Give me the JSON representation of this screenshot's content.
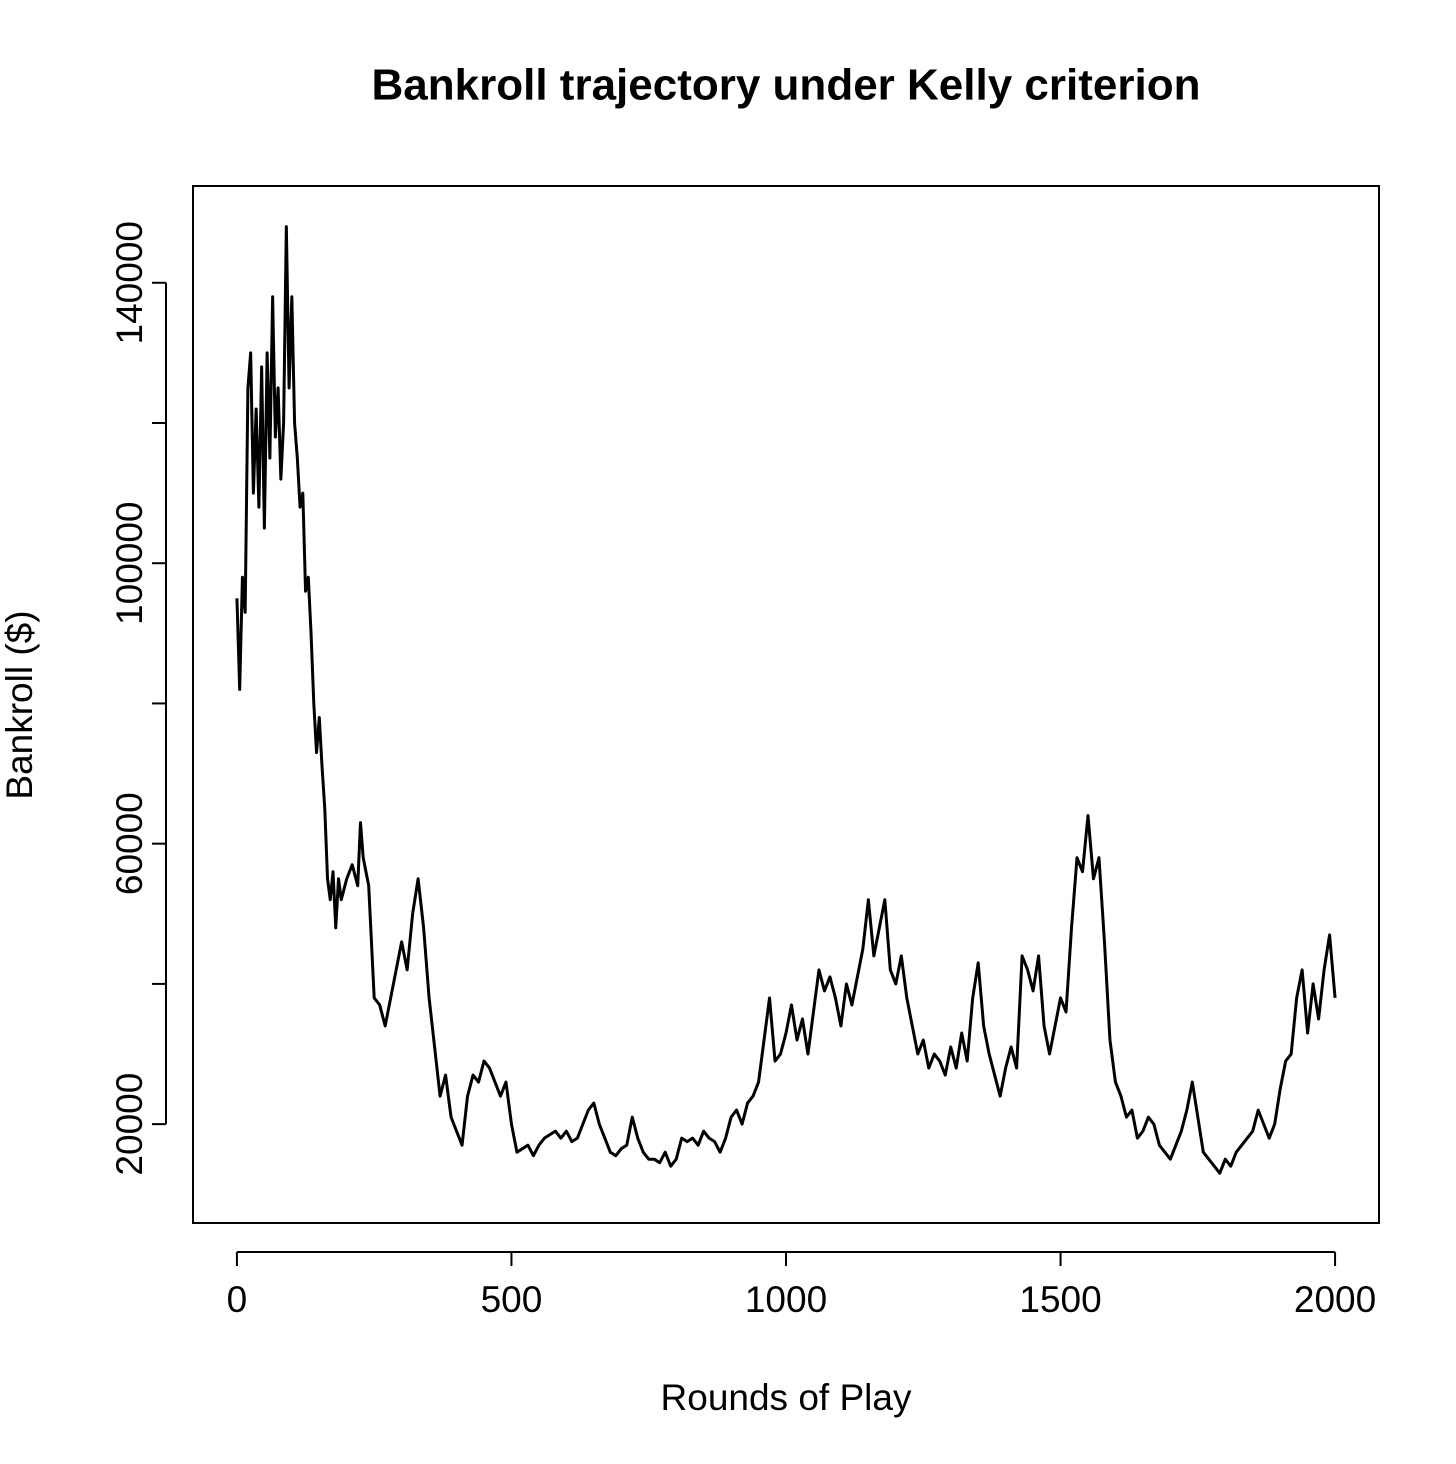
{
  "chart_data": {
    "type": "line",
    "title": "Bankroll trajectory under Kelly criterion",
    "x_label": "Rounds of Play",
    "y_label": "Bankroll ($)",
    "color": "#000000",
    "xlim": [
      -80,
      2080
    ],
    "ylim": [
      5900,
      153800
    ],
    "xticks": [
      0,
      500,
      1000,
      1500,
      2000
    ],
    "yticks": [
      20000,
      {
        "value": 40000,
        "label": null
      },
      60000,
      {
        "value": 80000,
        "label": null
      },
      100000,
      {
        "value": 120000,
        "label": null
      },
      140000
    ],
    "x": [
      0,
      5,
      10,
      15,
      20,
      25,
      30,
      35,
      40,
      45,
      50,
      55,
      60,
      65,
      70,
      75,
      80,
      85,
      90,
      95,
      100,
      105,
      110,
      115,
      120,
      125,
      130,
      135,
      140,
      145,
      150,
      155,
      160,
      165,
      170,
      175,
      180,
      185,
      190,
      200,
      210,
      220,
      225,
      230,
      240,
      250,
      260,
      270,
      280,
      290,
      300,
      310,
      320,
      330,
      340,
      350,
      360,
      370,
      380,
      390,
      400,
      410,
      420,
      430,
      440,
      450,
      460,
      470,
      480,
      490,
      500,
      510,
      520,
      530,
      540,
      550,
      560,
      570,
      580,
      590,
      600,
      610,
      620,
      630,
      640,
      650,
      660,
      670,
      680,
      690,
      700,
      710,
      720,
      730,
      740,
      750,
      760,
      770,
      780,
      790,
      800,
      810,
      820,
      830,
      840,
      850,
      860,
      870,
      880,
      890,
      900,
      910,
      920,
      930,
      940,
      950,
      960,
      970,
      980,
      990,
      1000,
      1010,
      1020,
      1030,
      1040,
      1050,
      1060,
      1070,
      1080,
      1090,
      1100,
      1110,
      1120,
      1130,
      1140,
      1150,
      1160,
      1170,
      1180,
      1190,
      1200,
      1210,
      1220,
      1230,
      1240,
      1250,
      1260,
      1270,
      1280,
      1290,
      1300,
      1310,
      1320,
      1330,
      1340,
      1350,
      1360,
      1370,
      1380,
      1390,
      1400,
      1410,
      1420,
      1430,
      1440,
      1450,
      1460,
      1470,
      1480,
      1490,
      1500,
      1510,
      1520,
      1530,
      1540,
      1550,
      1560,
      1570,
      1580,
      1590,
      1600,
      1610,
      1620,
      1630,
      1640,
      1650,
      1660,
      1670,
      1680,
      1690,
      1700,
      1710,
      1720,
      1730,
      1740,
      1750,
      1760,
      1770,
      1780,
      1790,
      1800,
      1810,
      1820,
      1830,
      1840,
      1850,
      1860,
      1870,
      1880,
      1890,
      1900,
      1910,
      1920,
      1930,
      1940,
      1950,
      1960,
      1970,
      1980,
      1990,
      2000
    ],
    "values": [
      95000,
      82000,
      98000,
      93000,
      125000,
      130000,
      110000,
      122000,
      108000,
      128000,
      105000,
      130000,
      115000,
      138000,
      118000,
      125000,
      112000,
      120000,
      148000,
      125000,
      138000,
      120000,
      115000,
      108000,
      110000,
      96000,
      98000,
      90000,
      80000,
      73000,
      78000,
      71000,
      65000,
      55000,
      52000,
      56000,
      48000,
      55000,
      52000,
      55000,
      57000,
      54000,
      63000,
      58000,
      54000,
      38000,
      37000,
      34000,
      38000,
      42000,
      46000,
      42000,
      50000,
      55000,
      48000,
      38000,
      31000,
      24000,
      27000,
      21000,
      19000,
      17000,
      24000,
      27000,
      26000,
      29000,
      28000,
      26000,
      24000,
      26000,
      20000,
      16000,
      16500,
      17000,
      15500,
      17000,
      18000,
      18500,
      19000,
      18000,
      19000,
      17500,
      18000,
      20000,
      22000,
      23000,
      20000,
      18000,
      16000,
      15500,
      16500,
      17000,
      21000,
      18000,
      16000,
      15000,
      15000,
      14500,
      16000,
      14000,
      15000,
      18000,
      17500,
      18000,
      17000,
      19000,
      18000,
      17500,
      16000,
      18000,
      21000,
      22000,
      20000,
      23000,
      24000,
      26000,
      32000,
      38000,
      29000,
      30000,
      33000,
      37000,
      32000,
      35000,
      30000,
      36000,
      42000,
      39000,
      41000,
      38000,
      34000,
      40000,
      37000,
      41000,
      45000,
      52000,
      44000,
      48000,
      52000,
      42000,
      40000,
      44000,
      38000,
      34000,
      30000,
      32000,
      28000,
      30000,
      29000,
      27000,
      31000,
      28000,
      33000,
      29000,
      38000,
      43000,
      34000,
      30000,
      27000,
      24000,
      28000,
      31000,
      28000,
      44000,
      42000,
      39000,
      44000,
      34000,
      30000,
      34000,
      38000,
      36000,
      48000,
      58000,
      56000,
      64000,
      55000,
      58000,
      46000,
      32000,
      26000,
      24000,
      21000,
      22000,
      18000,
      19000,
      21000,
      20000,
      17000,
      16000,
      15000,
      17000,
      19000,
      22000,
      26000,
      21000,
      16000,
      15000,
      14000,
      13000,
      15000,
      14000,
      16000,
      17000,
      18000,
      19000,
      22000,
      20000,
      18000,
      20000,
      25000,
      29000,
      30000,
      38000,
      42000,
      33000,
      40000,
      35000,
      42000,
      47000,
      38000
    ]
  }
}
